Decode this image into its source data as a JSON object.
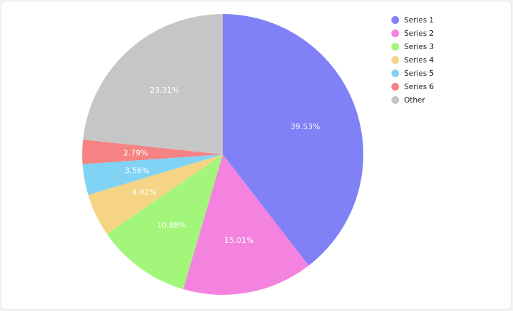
{
  "chart_data": {
    "type": "pie",
    "title": "",
    "legend_position": "top-right",
    "slices": [
      {
        "name": "Series 1",
        "label": "39.53%",
        "value": 39.53,
        "color": "#8181f7"
      },
      {
        "name": "Series 2",
        "label": "15.01%",
        "value": 15.01,
        "color": "#f483e0"
      },
      {
        "name": "Series 3",
        "label": "10.88%",
        "value": 10.88,
        "color": "#a2f77b"
      },
      {
        "name": "Series 4",
        "label": "4.92%",
        "value": 4.92,
        "color": "#f5d485"
      },
      {
        "name": "Series 5",
        "label": "3.56%",
        "value": 3.56,
        "color": "#80d3f5"
      },
      {
        "name": "Series 6",
        "label": "2.79%",
        "value": 2.79,
        "color": "#f58383"
      },
      {
        "name": "Other",
        "label": "23.31%",
        "value": 23.31,
        "color": "#c6c6c6"
      }
    ]
  }
}
